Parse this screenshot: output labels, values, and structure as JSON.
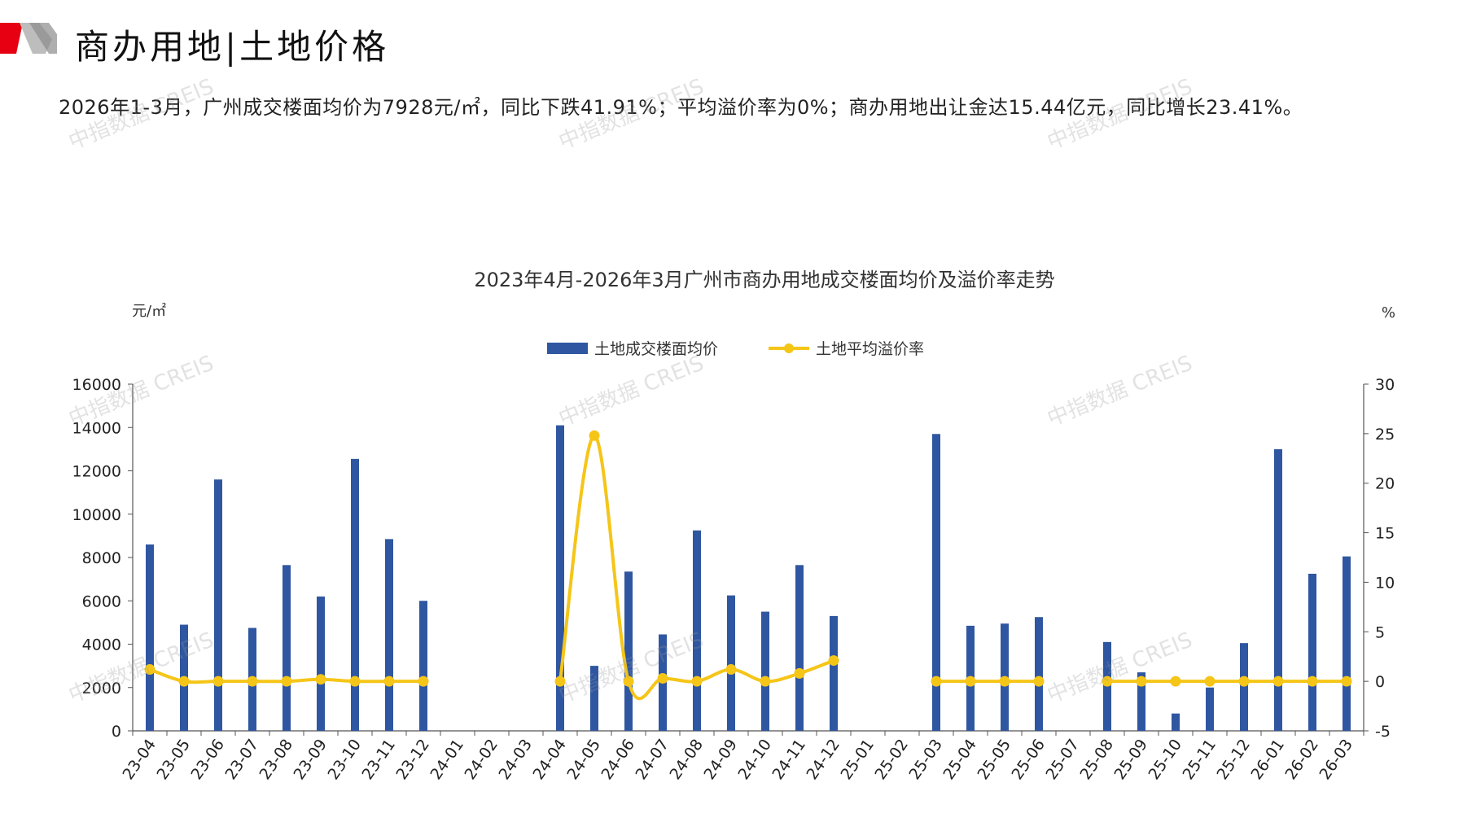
{
  "header": {
    "title": "商办用地|土地价格",
    "brand_color": "#e60012"
  },
  "summary": "2026年1-3月，广州成交楼面均价为7928元/㎡，同比下跌41.91%；平均溢价率为0%；商办用地出让金达15.44亿元，同比增长23.41%。",
  "watermark": "中指数据 CREIS",
  "chart_data": {
    "type": "bar",
    "title": "2023年4月-2026年3月广州市商办用地成交楼面均价及溢价率走势",
    "y_left_unit": "元/㎡",
    "y_right_unit": "%",
    "y_left_range": [
      0,
      16000
    ],
    "y_left_ticks": [
      "0",
      "2000",
      "4000",
      "6000",
      "8000",
      "10000",
      "12000",
      "14000",
      "16000"
    ],
    "y_right_range": [
      -5,
      30
    ],
    "y_right_ticks": [
      "-5",
      "0",
      "5",
      "10",
      "15",
      "20",
      "25",
      "30"
    ],
    "legend_position": "top-center",
    "categories": [
      "23-04",
      "23-05",
      "23-06",
      "23-07",
      "23-08",
      "23-09",
      "23-10",
      "23-11",
      "23-12",
      "24-01",
      "24-02",
      "24-03",
      "24-04",
      "24-05",
      "24-06",
      "24-07",
      "24-08",
      "24-09",
      "24-10",
      "24-11",
      "24-12",
      "25-01",
      "25-02",
      "25-03",
      "25-04",
      "25-05",
      "25-06",
      "25-07",
      "25-08",
      "25-09",
      "25-10",
      "25-11",
      "25-12",
      "26-01",
      "26-02",
      "26-03"
    ],
    "series": [
      {
        "name": "土地成交楼面均价",
        "type": "bar",
        "axis": "left",
        "color": "#2f56a0",
        "values": [
          8600,
          4900,
          11600,
          4750,
          7650,
          6200,
          12550,
          8850,
          6000,
          null,
          null,
          null,
          14100,
          3000,
          7350,
          4450,
          9250,
          6250,
          5500,
          7650,
          5300,
          null,
          null,
          13700,
          4850,
          4950,
          5250,
          null,
          4100,
          2700,
          800,
          2000,
          4050,
          13000,
          7250,
          8050
        ]
      },
      {
        "name": "土地平均溢价率",
        "type": "line",
        "axis": "right",
        "color": "#f5c518",
        "values": [
          1.2,
          0,
          0,
          0,
          0,
          0.2,
          0,
          0,
          0,
          null,
          null,
          null,
          0,
          24.8,
          0,
          0.3,
          0,
          1.2,
          0,
          0.8,
          2.1,
          null,
          null,
          0,
          0,
          0,
          0,
          null,
          0,
          0,
          0,
          0,
          0,
          0,
          0,
          0
        ]
      }
    ]
  }
}
